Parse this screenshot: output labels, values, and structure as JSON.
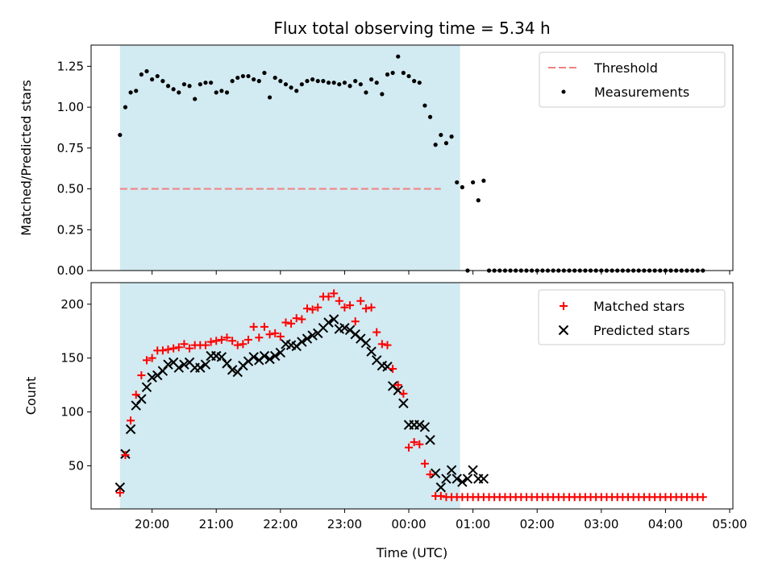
{
  "chart_data": [
    {
      "type": "scatter",
      "title": "Flux total observing time = 5.34 h",
      "xlabel": "",
      "ylabel": "Matched/Predicted stars",
      "ylim": [
        0,
        1.38
      ],
      "yticks": [
        "0.00",
        "0.25",
        "0.50",
        "0.75",
        "1.00",
        "1.25"
      ],
      "threshold": 0.5,
      "shaded_region": [
        "19:30",
        "00:48"
      ],
      "legend_position": "upper right",
      "series": [
        {
          "name": "Threshold",
          "kind": "dashed-line",
          "color": "#f08080",
          "x": [
            "19:30",
            "00:30"
          ],
          "y": [
            0.5,
            0.5
          ]
        },
        {
          "name": "Measurements",
          "kind": "dot",
          "color": "#000000",
          "x": [
            "19:30",
            "19:35",
            "19:40",
            "19:45",
            "19:50",
            "19:55",
            "20:00",
            "20:05",
            "20:10",
            "20:15",
            "20:20",
            "20:25",
            "20:30",
            "20:35",
            "20:40",
            "20:45",
            "20:50",
            "20:55",
            "21:00",
            "21:05",
            "21:10",
            "21:15",
            "21:20",
            "21:25",
            "21:30",
            "21:35",
            "21:40",
            "21:45",
            "21:50",
            "21:55",
            "22:00",
            "22:05",
            "22:10",
            "22:15",
            "22:20",
            "22:25",
            "22:30",
            "22:35",
            "22:40",
            "22:45",
            "22:50",
            "22:55",
            "23:00",
            "23:05",
            "23:10",
            "23:15",
            "23:20",
            "23:25",
            "23:30",
            "23:35",
            "23:40",
            "23:45",
            "23:50",
            "23:55",
            "00:00",
            "00:05",
            "00:10",
            "00:15",
            "00:20",
            "00:25",
            "00:30",
            "00:35",
            "00:40",
            "00:45",
            "00:50",
            "00:55",
            "01:00",
            "01:05",
            "01:10",
            "01:15",
            "01:20",
            "01:25",
            "01:30",
            "01:35",
            "01:40",
            "01:45",
            "01:50",
            "01:55",
            "02:00",
            "02:05",
            "02:10",
            "02:15",
            "02:20",
            "02:25",
            "02:30",
            "02:35",
            "02:40",
            "02:45",
            "02:50",
            "02:55",
            "03:00",
            "03:05",
            "03:10",
            "03:15",
            "03:20",
            "03:25",
            "03:30",
            "03:35",
            "03:40",
            "03:45",
            "03:50",
            "03:55",
            "04:00",
            "04:05",
            "04:10",
            "04:15",
            "04:20",
            "04:25",
            "04:30",
            "04:35"
          ],
          "y": [
            0.83,
            1.0,
            1.09,
            1.1,
            1.2,
            1.22,
            1.17,
            1.19,
            1.16,
            1.13,
            1.11,
            1.09,
            1.14,
            1.13,
            1.05,
            1.14,
            1.15,
            1.15,
            1.09,
            1.1,
            1.09,
            1.16,
            1.18,
            1.19,
            1.19,
            1.17,
            1.16,
            1.21,
            1.06,
            1.18,
            1.16,
            1.14,
            1.12,
            1.1,
            1.14,
            1.16,
            1.17,
            1.16,
            1.16,
            1.15,
            1.15,
            1.14,
            1.15,
            1.13,
            1.16,
            1.14,
            1.09,
            1.17,
            1.15,
            1.08,
            1.2,
            1.21,
            1.31,
            1.21,
            1.19,
            1.16,
            1.15,
            1.01,
            0.94,
            0.77,
            0.83,
            0.78,
            0.82,
            0.54,
            0.51,
            0.0,
            0.54,
            0.43,
            0.55,
            0.0,
            0.0,
            0.0,
            0.0,
            0.0,
            0.0,
            0.0,
            0.0,
            0.0,
            0.0,
            0.0,
            0.0,
            0.0,
            0.0,
            0.0,
            0.0,
            0.0,
            0.0,
            0.0,
            0.0,
            0.0,
            0.0,
            0.0,
            0.0,
            0.0,
            0.0,
            0.0,
            0.0,
            0.0,
            0.0,
            0.0,
            0.0,
            0.0,
            0.0,
            0.0,
            0.0,
            0.0,
            0.0,
            0.0,
            0.0,
            0.0
          ]
        }
      ]
    },
    {
      "type": "scatter",
      "title": "",
      "xlabel": "Time (UTC)",
      "ylabel": "Count",
      "ylim": [
        10,
        220
      ],
      "yticks": [
        "50",
        "100",
        "150",
        "200"
      ],
      "xticks": [
        "20:00",
        "21:00",
        "22:00",
        "23:00",
        "00:00",
        "01:00",
        "02:00",
        "03:00",
        "04:00",
        "05:00"
      ],
      "shaded_region": [
        "19:30",
        "00:48"
      ],
      "legend_position": "upper right",
      "series": [
        {
          "name": "Matched stars",
          "kind": "plus",
          "color": "#ff0000",
          "x": [
            "19:30",
            "19:35",
            "19:40",
            "19:45",
            "19:50",
            "19:55",
            "20:00",
            "20:05",
            "20:10",
            "20:15",
            "20:20",
            "20:25",
            "20:30",
            "20:35",
            "20:40",
            "20:45",
            "20:50",
            "20:55",
            "21:00",
            "21:05",
            "21:10",
            "21:15",
            "21:20",
            "21:25",
            "21:30",
            "21:35",
            "21:40",
            "21:45",
            "21:50",
            "21:55",
            "22:00",
            "22:05",
            "22:10",
            "22:15",
            "22:20",
            "22:25",
            "22:30",
            "22:35",
            "22:40",
            "22:45",
            "22:50",
            "22:55",
            "23:00",
            "23:05",
            "23:10",
            "23:15",
            "23:20",
            "23:25",
            "23:30",
            "23:35",
            "23:40",
            "23:45",
            "23:50",
            "23:55",
            "00:00",
            "00:05",
            "00:10",
            "00:15",
            "00:20",
            "00:25",
            "00:30",
            "00:35",
            "00:40",
            "00:45",
            "00:50",
            "00:55",
            "01:00",
            "01:05",
            "01:10",
            "01:15",
            "01:20",
            "01:25",
            "01:30",
            "01:35",
            "01:40",
            "01:45",
            "01:50",
            "01:55",
            "02:00",
            "02:05",
            "02:10",
            "02:15",
            "02:20",
            "02:25",
            "02:30",
            "02:35",
            "02:40",
            "02:45",
            "02:50",
            "02:55",
            "03:00",
            "03:05",
            "03:10",
            "03:15",
            "03:20",
            "03:25",
            "03:30",
            "03:35",
            "03:40",
            "03:45",
            "03:50",
            "03:55",
            "04:00",
            "04:05",
            "04:10",
            "04:15",
            "04:20",
            "04:25",
            "04:30",
            "04:35"
          ],
          "y": [
            25,
            60,
            92,
            116,
            134,
            148,
            150,
            157,
            157,
            158,
            159,
            160,
            163,
            159,
            162,
            162,
            162,
            165,
            166,
            167,
            169,
            166,
            162,
            163,
            167,
            179,
            169,
            179,
            172,
            173,
            170,
            183,
            182,
            187,
            186,
            196,
            195,
            197,
            207,
            207,
            210,
            203,
            197,
            199,
            184,
            203,
            196,
            197,
            174,
            163,
            162,
            140,
            125,
            117,
            67,
            72,
            70,
            52,
            42,
            22,
            22,
            21,
            21,
            21,
            21,
            21,
            21,
            21,
            21,
            21,
            21,
            21,
            21,
            21,
            21,
            21,
            21,
            21,
            21,
            21,
            21,
            21,
            21,
            21,
            21,
            21,
            21,
            21,
            21,
            21,
            21,
            21,
            21,
            21,
            21,
            21,
            21,
            21,
            21,
            21,
            21,
            21,
            21,
            21,
            21,
            21,
            21,
            21,
            21,
            21
          ]
        },
        {
          "name": "Predicted stars",
          "kind": "x",
          "color": "#000000",
          "x": [
            "19:30",
            "19:35",
            "19:40",
            "19:45",
            "19:50",
            "19:55",
            "20:00",
            "20:05",
            "20:10",
            "20:15",
            "20:20",
            "20:25",
            "20:30",
            "20:35",
            "20:40",
            "20:45",
            "20:50",
            "20:55",
            "21:00",
            "21:05",
            "21:10",
            "21:15",
            "21:20",
            "21:25",
            "21:30",
            "21:35",
            "21:40",
            "21:45",
            "21:50",
            "21:55",
            "22:00",
            "22:05",
            "22:10",
            "22:15",
            "22:20",
            "22:25",
            "22:30",
            "22:35",
            "22:40",
            "22:45",
            "22:50",
            "22:55",
            "23:00",
            "23:05",
            "23:10",
            "23:15",
            "23:20",
            "23:25",
            "23:30",
            "23:35",
            "23:40",
            "23:45",
            "23:50",
            "23:55",
            "00:00",
            "00:05",
            "00:10",
            "00:15",
            "00:20",
            "00:25",
            "00:30",
            "00:35",
            "00:40",
            "00:45",
            "00:50",
            "00:55",
            "01:00",
            "01:05",
            "01:10"
          ],
          "y": [
            30,
            61,
            84,
            106,
            112,
            123,
            132,
            134,
            138,
            144,
            146,
            141,
            144,
            146,
            141,
            141,
            144,
            152,
            152,
            151,
            145,
            139,
            137,
            143,
            147,
            151,
            148,
            152,
            149,
            152,
            155,
            163,
            162,
            161,
            165,
            168,
            171,
            173,
            178,
            183,
            186,
            177,
            178,
            176,
            172,
            168,
            164,
            156,
            148,
            143,
            142,
            124,
            120,
            108,
            88,
            88,
            88,
            86,
            74,
            43,
            30,
            38,
            46,
            38,
            35,
            38,
            46,
            38,
            38
          ]
        }
      ]
    }
  ]
}
